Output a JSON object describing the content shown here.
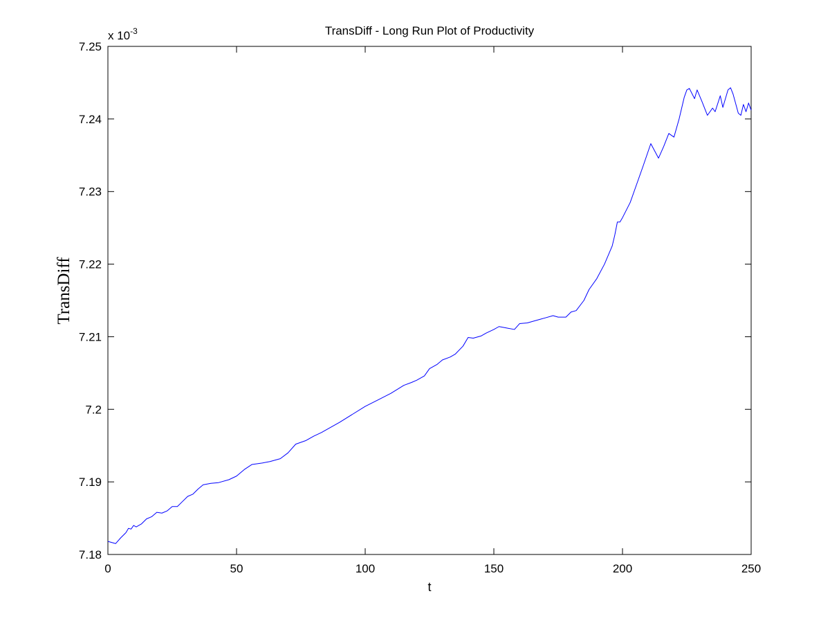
{
  "chart_data": {
    "type": "line",
    "title": "TransDiff - Long Run Plot of Productivity",
    "xlabel": "t",
    "ylabel": "TransDiff",
    "y_multiplier": {
      "base": "x 10",
      "exponent": "-3"
    },
    "xlim": [
      0,
      250
    ],
    "ylim": [
      7.18,
      7.25
    ],
    "xticks": [
      0,
      50,
      100,
      150,
      200,
      250
    ],
    "xtick_labels": [
      "0",
      "50",
      "100",
      "150",
      "200",
      "250"
    ],
    "yticks": [
      7.18,
      7.19,
      7.2,
      7.21,
      7.22,
      7.23,
      7.24,
      7.25
    ],
    "ytick_labels": [
      "7.18",
      "7.19",
      "7.2",
      "7.21",
      "7.22",
      "7.23",
      "7.24",
      "7.25"
    ],
    "grid": false,
    "series": [
      {
        "color": "#0000ff",
        "x": [
          0,
          3,
          5,
          7,
          8,
          9,
          10,
          11,
          13,
          15,
          17,
          19,
          21,
          23,
          25,
          27,
          29,
          31,
          33,
          35,
          37,
          40,
          43,
          47,
          50,
          53,
          56,
          60,
          63,
          67,
          70,
          73,
          77,
          80,
          83,
          87,
          90,
          95,
          100,
          105,
          110,
          115,
          118,
          120,
          123,
          125,
          128,
          130,
          133,
          135,
          138,
          140,
          142,
          145,
          147,
          150,
          152,
          155,
          158,
          160,
          163,
          165,
          168,
          170,
          173,
          175,
          178,
          180,
          182,
          185,
          187,
          190,
          193,
          196,
          197,
          198,
          199,
          200,
          203,
          206,
          208,
          211,
          214,
          216,
          218,
          220,
          222,
          224,
          225,
          226,
          228,
          229,
          231,
          233,
          235,
          236,
          238,
          239,
          241,
          242,
          243,
          245,
          246,
          247,
          248,
          249,
          250
        ],
        "y": [
          7.1818,
          7.1815,
          7.1823,
          7.183,
          7.1836,
          7.1835,
          7.184,
          7.1838,
          7.1842,
          7.1849,
          7.1852,
          7.1858,
          7.1857,
          7.186,
          7.1866,
          7.1866,
          7.1873,
          7.188,
          7.1883,
          7.189,
          7.1896,
          7.1898,
          7.1899,
          7.1903,
          7.1908,
          7.1917,
          7.1924,
          7.1926,
          7.1928,
          7.1932,
          7.194,
          7.1952,
          7.1957,
          7.1963,
          7.1968,
          7.1976,
          7.1982,
          7.1993,
          7.2004,
          7.2013,
          7.2022,
          7.2033,
          7.2037,
          7.204,
          7.2046,
          7.2056,
          7.2062,
          7.2068,
          7.2072,
          7.2076,
          7.2087,
          7.2099,
          7.2098,
          7.2101,
          7.2105,
          7.211,
          7.2114,
          7.2112,
          7.211,
          7.2118,
          7.2119,
          7.2121,
          7.2124,
          7.2126,
          7.2129,
          7.2127,
          7.2127,
          7.2134,
          7.2136,
          7.215,
          7.2165,
          7.218,
          7.22,
          7.2225,
          7.224,
          7.2258,
          7.2258,
          7.2264,
          7.2285,
          7.2315,
          7.2335,
          7.2366,
          7.2346,
          7.2362,
          7.238,
          7.2375,
          7.24,
          7.243,
          7.244,
          7.2442,
          7.2428,
          7.244,
          7.2423,
          7.2405,
          7.2415,
          7.241,
          7.2432,
          7.2416,
          7.244,
          7.2443,
          7.2434,
          7.2408,
          7.2405,
          7.242,
          7.241,
          7.2422,
          7.2412
        ]
      }
    ]
  }
}
